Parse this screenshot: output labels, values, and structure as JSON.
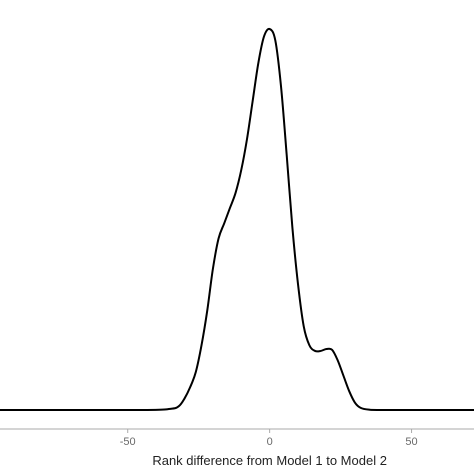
{
  "chart_data": {
    "type": "line",
    "title": "",
    "xlabel": "Rank difference from Model 1 to Model 2",
    "ylabel": "",
    "xlim": [
      -95,
      72
    ],
    "ylim": [
      0,
      1
    ],
    "x_ticks": [
      -50,
      0,
      50
    ],
    "x_tick_labels": [
      "-50",
      "0",
      "50"
    ],
    "grid": false,
    "legend": "none",
    "colors": {
      "line": "#000000",
      "axis": "#aaaaaa",
      "tick_text": "#6a6a6a"
    },
    "series": [
      {
        "x": [
          -95,
          -45,
          -35,
          -32,
          -30,
          -28,
          -26,
          -24,
          -22,
          -20,
          -18,
          -16,
          -14,
          -12,
          -10,
          -8,
          -6,
          -4,
          -2,
          0,
          2,
          4,
          6,
          8,
          10,
          12,
          14,
          16,
          18,
          20,
          22,
          24,
          26,
          28,
          30,
          32,
          35,
          40,
          72
        ],
        "values": [
          0,
          0,
          0.003,
          0.01,
          0.03,
          0.06,
          0.1,
          0.17,
          0.26,
          0.37,
          0.45,
          0.49,
          0.53,
          0.57,
          0.63,
          0.71,
          0.81,
          0.91,
          0.98,
          1.0,
          0.97,
          0.85,
          0.67,
          0.48,
          0.33,
          0.22,
          0.17,
          0.155,
          0.155,
          0.16,
          0.158,
          0.13,
          0.09,
          0.05,
          0.02,
          0.006,
          0.001,
          0,
          0
        ]
      }
    ]
  }
}
